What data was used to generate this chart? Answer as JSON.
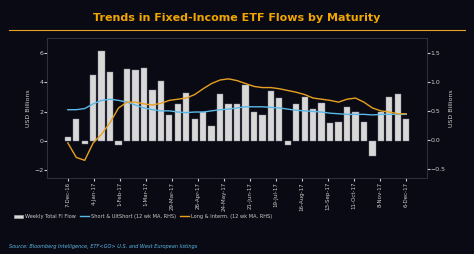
{
  "title": "Trends in Fixed-Income ETF Flows by Maturity",
  "title_color": "#f0a500",
  "bg_color": "#0a0a14",
  "plot_bg_color": "#0a0a14",
  "tick_color": "#cccccc",
  "ylabel_left": "USD Billions",
  "ylabel_right": "USD Billions",
  "ylim_left": [
    -2.5,
    7.0
  ],
  "ylim_right": [
    -0.65,
    1.75
  ],
  "source_text": "Source: Bloomberg Intelligence, ETF<GO> U.S. and West European listings",
  "x_labels": [
    "7-Dec-16",
    "4-Jan-17",
    "1-Feb-17",
    "1-Mar-17",
    "29-Mar-17",
    "26-Apr-17",
    "24-May-17",
    "21-Jun-17",
    "19-Jul-17",
    "16-Aug-17",
    "13-Sep-17",
    "11-Oct-17",
    "8-Nov-17",
    "6-Dec-17"
  ],
  "bar_values": [
    0.3,
    1.5,
    -0.2,
    4.5,
    6.1,
    4.7,
    -0.3,
    4.9,
    4.8,
    5.0,
    3.5,
    4.1,
    1.8,
    2.5,
    3.3,
    1.5,
    2.0,
    1.0,
    3.2,
    2.5,
    2.5,
    3.8,
    2.0,
    1.8,
    3.4,
    2.9,
    -0.3,
    2.5,
    3.0,
    2.2,
    2.6,
    1.2,
    1.3,
    2.3,
    2.0,
    1.3,
    -1.0,
    2.0,
    3.0,
    3.2,
    1.5
  ],
  "short_line": [
    0.52,
    0.52,
    0.54,
    0.62,
    0.68,
    0.7,
    0.68,
    0.65,
    0.6,
    0.55,
    0.52,
    0.5,
    0.5,
    0.48,
    0.47,
    0.48,
    0.48,
    0.5,
    0.52,
    0.53,
    0.55,
    0.57,
    0.57,
    0.57,
    0.56,
    0.55,
    0.53,
    0.51,
    0.5,
    0.49,
    0.48,
    0.46,
    0.45,
    0.44,
    0.44,
    0.44,
    0.43,
    0.44,
    0.44,
    0.44,
    0.44
  ],
  "long_line": [
    -0.05,
    -0.3,
    -0.35,
    -0.05,
    0.1,
    0.3,
    0.55,
    0.65,
    0.65,
    0.62,
    0.6,
    0.63,
    0.68,
    0.7,
    0.72,
    0.78,
    0.88,
    0.97,
    1.03,
    1.05,
    1.02,
    0.97,
    0.92,
    0.9,
    0.9,
    0.88,
    0.85,
    0.82,
    0.78,
    0.72,
    0.7,
    0.68,
    0.65,
    0.7,
    0.72,
    0.65,
    0.55,
    0.5,
    0.48,
    0.45,
    0.45
  ],
  "bar_color": "#d8d8d8",
  "bar_edge_color": "#888899",
  "short_line_color": "#5ab8e8",
  "long_line_color": "#e8a020",
  "separator_color": "#e8a020",
  "legend_items": [
    "Weekly Total FI Flow",
    "Short & UltShort (12 wk MA, RHS)",
    "Long & Interm. (12 wk MA, RHS)"
  ],
  "yticks_left": [
    -2.0,
    0.0,
    2.0,
    4.0,
    6.0
  ],
  "yticks_right": [
    -0.5,
    0.0,
    0.5,
    1.0,
    1.5
  ]
}
